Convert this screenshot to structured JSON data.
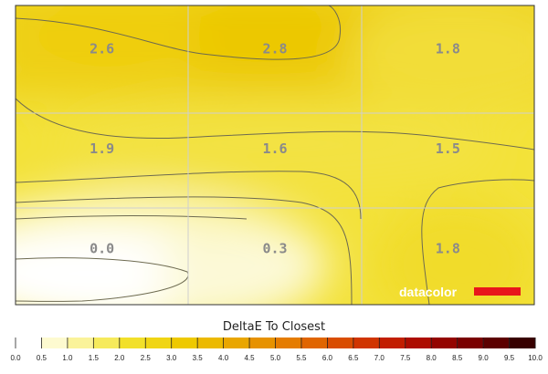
{
  "chart_data": {
    "type": "heatmap",
    "title": "",
    "legend_title": "DeltaE To Closest",
    "brand": "datacolor",
    "rows": 3,
    "cols": 3,
    "values": [
      [
        2.6,
        2.8,
        1.8
      ],
      [
        1.9,
        1.6,
        1.5
      ],
      [
        0.0,
        0.3,
        1.8
      ]
    ],
    "labels": [
      [
        "2.6",
        "2.8",
        "1.8"
      ],
      [
        "1.9",
        "1.6",
        "1.5"
      ],
      [
        "0.0",
        "0.3",
        "1.8"
      ]
    ],
    "scale_min": 0,
    "scale_max": 10,
    "scale_ticks": [
      "0.0",
      "0.5",
      "1.0",
      "1.5",
      "2.0",
      "2.5",
      "3.0",
      "3.5",
      "4.0",
      "4.5",
      "5.0",
      "5.5",
      "6.0",
      "6.5",
      "7.0",
      "7.5",
      "8.0",
      "8.5",
      "9.0",
      "9.5",
      "10.0"
    ],
    "grid": true
  },
  "colors": {
    "low": "#ffffff",
    "mid": "#f4e31c",
    "high": "#eecb00",
    "brand_bar": "#e8161b"
  }
}
